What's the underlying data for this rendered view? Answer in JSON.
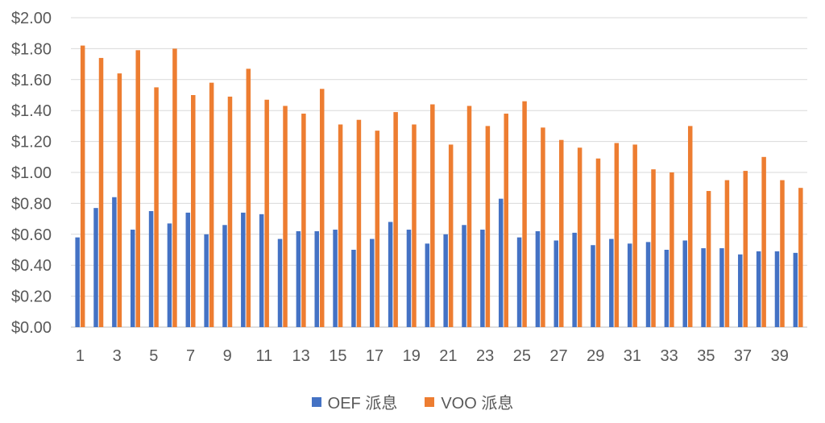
{
  "chart_data": {
    "type": "bar",
    "categories": [
      "1",
      "2",
      "3",
      "4",
      "5",
      "6",
      "7",
      "8",
      "9",
      "10",
      "11",
      "12",
      "13",
      "14",
      "15",
      "16",
      "17",
      "18",
      "19",
      "20",
      "21",
      "22",
      "23",
      "24",
      "25",
      "26",
      "27",
      "28",
      "29",
      "30",
      "31",
      "32",
      "33",
      "34",
      "35",
      "36",
      "37",
      "38",
      "39",
      "40"
    ],
    "x_tick_labels": [
      "1",
      "3",
      "5",
      "7",
      "9",
      "11",
      "13",
      "15",
      "17",
      "19",
      "21",
      "23",
      "25",
      "27",
      "29",
      "31",
      "33",
      "35",
      "37",
      "39"
    ],
    "y_tick_labels": [
      "$0.00",
      "$0.20",
      "$0.40",
      "$0.60",
      "$0.80",
      "$1.00",
      "$1.20",
      "$1.40",
      "$1.60",
      "$1.80",
      "$2.00"
    ],
    "ylim": [
      0,
      2.0
    ],
    "grid": true,
    "legend_position": "bottom",
    "series": [
      {
        "name": "OEF 派息",
        "color": "#4472C4",
        "values": [
          0.58,
          0.77,
          0.84,
          0.63,
          0.75,
          0.67,
          0.74,
          0.6,
          0.66,
          0.74,
          0.73,
          0.57,
          0.62,
          0.62,
          0.63,
          0.5,
          0.57,
          0.68,
          0.63,
          0.54,
          0.6,
          0.66,
          0.63,
          0.83,
          0.58,
          0.62,
          0.56,
          0.61,
          0.53,
          0.57,
          0.54,
          0.55,
          0.5,
          0.56,
          0.51,
          0.51,
          0.47,
          0.49,
          0.49,
          0.48
        ]
      },
      {
        "name": "VOO 派息",
        "color": "#ED7D31",
        "values": [
          1.82,
          1.74,
          1.64,
          1.79,
          1.55,
          1.8,
          1.5,
          1.58,
          1.49,
          1.67,
          1.47,
          1.43,
          1.38,
          1.54,
          1.31,
          1.34,
          1.27,
          1.39,
          1.31,
          1.44,
          1.18,
          1.43,
          1.3,
          1.38,
          1.46,
          1.29,
          1.21,
          1.16,
          1.09,
          1.19,
          1.18,
          1.02,
          1.0,
          1.3,
          0.88,
          0.95,
          1.01,
          1.1,
          0.95,
          0.9
        ]
      }
    ]
  }
}
